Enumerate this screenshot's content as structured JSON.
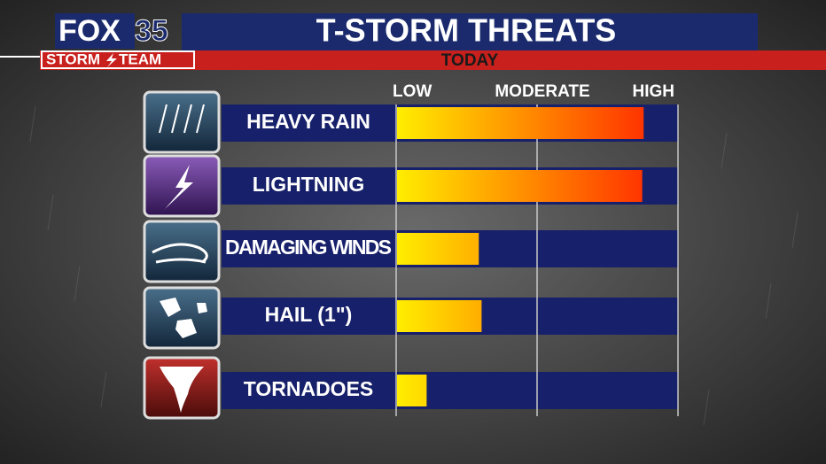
{
  "logo": {
    "fox": "FOX",
    "number": "35",
    "storm": "STORM",
    "team": "TEAM"
  },
  "chart_data": {
    "type": "bar",
    "orientation": "horizontal",
    "title": "T-STORM THREATS",
    "subtitle": "TODAY",
    "categories": [
      "HEAVY RAIN",
      "LIGHTNING",
      "DAMAGING WINDS",
      "HAIL (1\")",
      "TORNADOES"
    ],
    "values": [
      1.75,
      1.74,
      0.58,
      0.6,
      0.21
    ],
    "colors": [
      "#ffee00",
      "#ff1a00"
    ],
    "xlim": [
      0,
      2
    ],
    "xticks": [
      {
        "value": 0,
        "label": "LOW"
      },
      {
        "value": 1,
        "label": "MODERATE"
      },
      {
        "value": 2,
        "label": "HIGH"
      }
    ],
    "grid": true
  }
}
